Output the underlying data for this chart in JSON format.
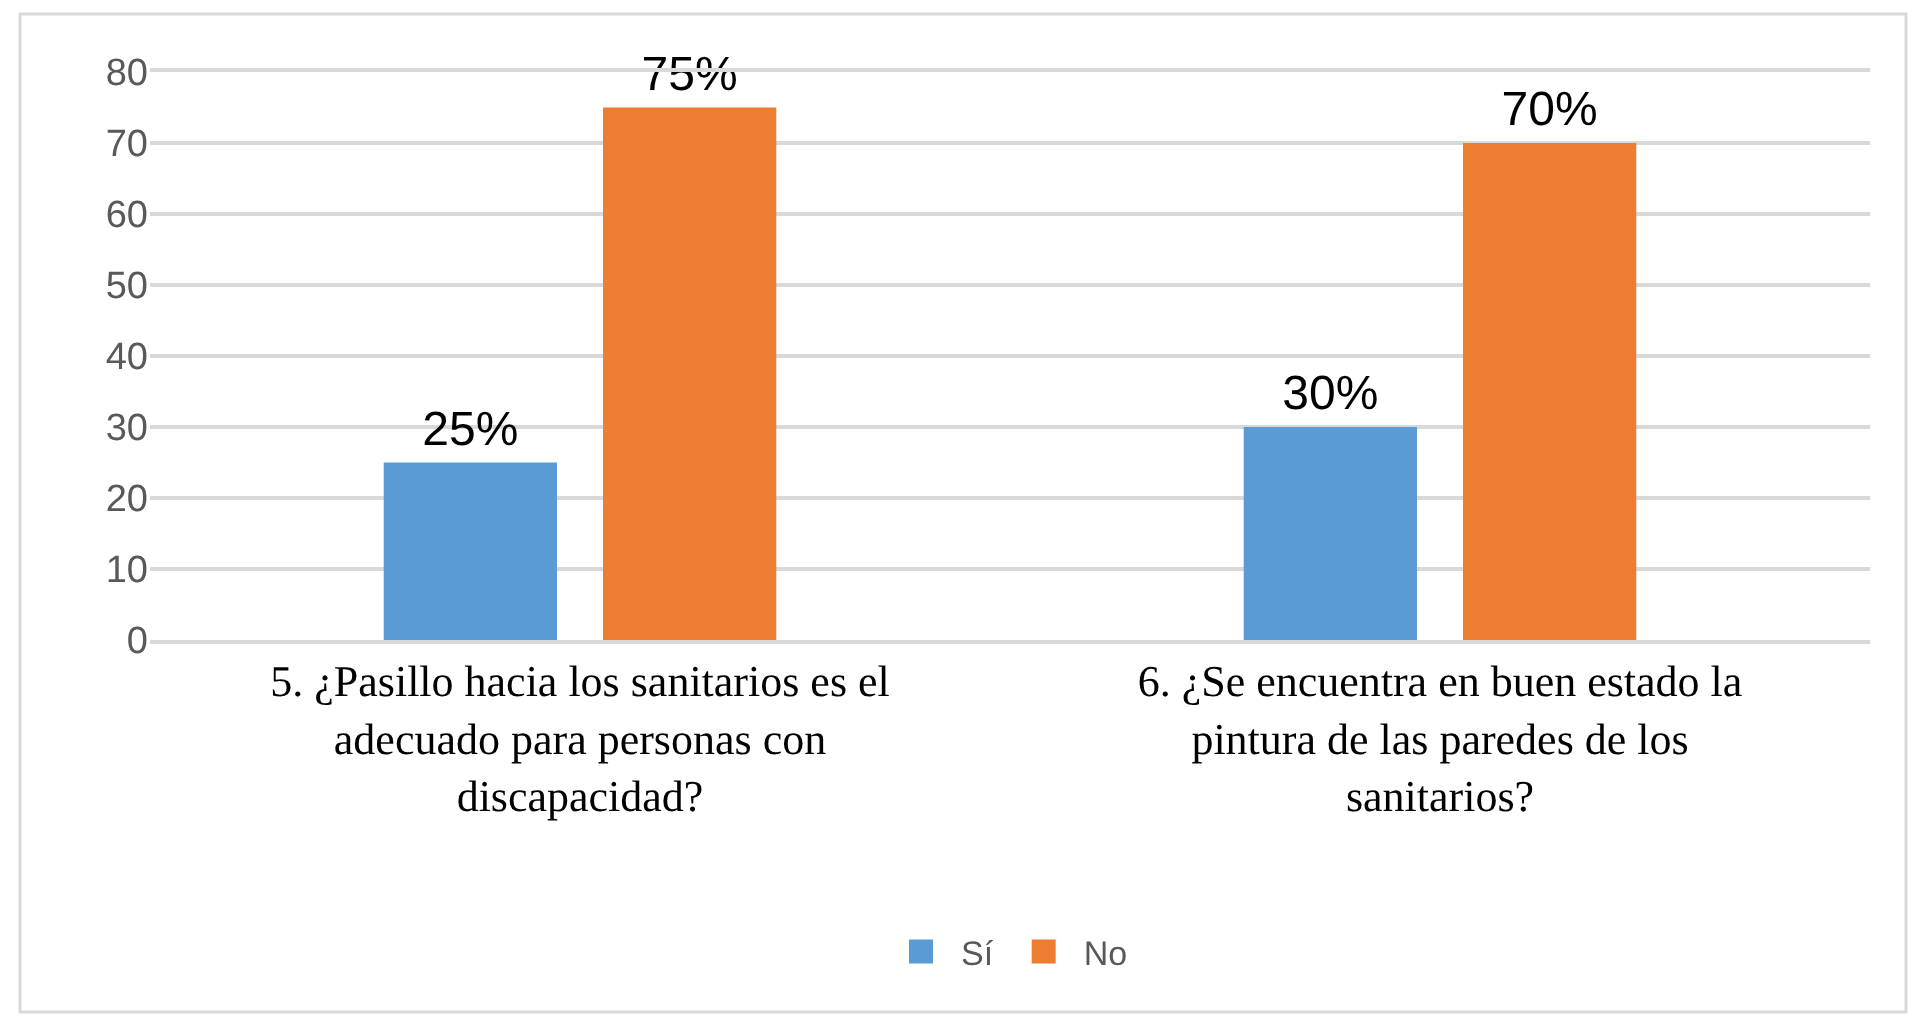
{
  "chart_data": {
    "type": "bar",
    "categories": [
      "5. ¿Pasillo hacia los sanitarios es el adecuado para personas con discapacidad?",
      "6. ¿Se encuentra en buen estado la pintura de las paredes de los sanitarios?"
    ],
    "series": [
      {
        "name": "Sí",
        "color": "#5b9bd5",
        "values": [
          25,
          30
        ],
        "value_labels": [
          "25%",
          "30%"
        ]
      },
      {
        "name": "No",
        "color": "#ed7d31",
        "values": [
          75,
          70
        ],
        "value_labels": [
          "75%",
          "70%"
        ]
      }
    ],
    "ylim": [
      0,
      80
    ],
    "yticks": [
      0,
      10,
      20,
      30,
      40,
      50,
      60,
      70,
      80
    ],
    "grid": "y",
    "legend": "bottom"
  }
}
